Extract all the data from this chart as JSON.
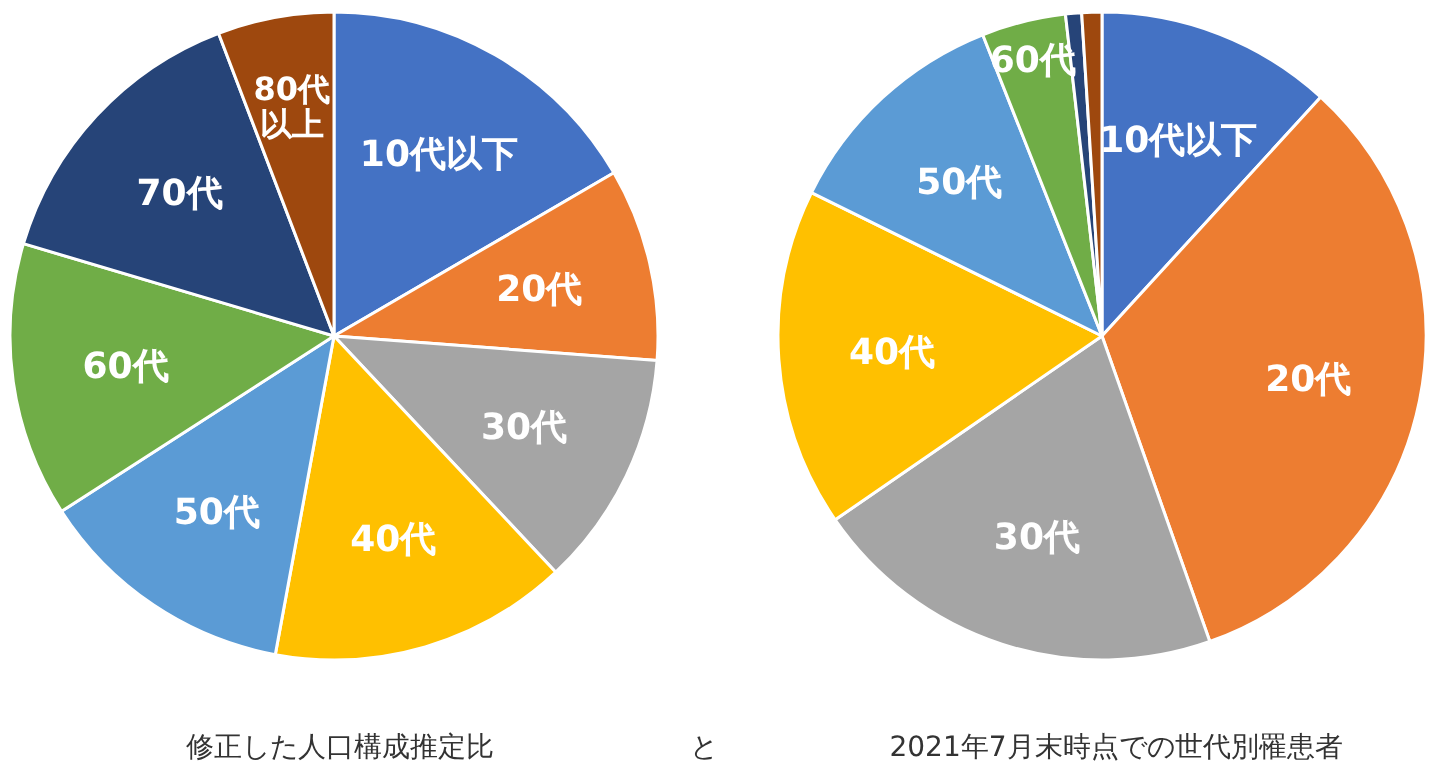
{
  "chart_data": [
    {
      "type": "pie",
      "title": "修正した人口構成推定比",
      "annotations": [
        "と"
      ],
      "categories": [
        "10代以下",
        "20代",
        "30代",
        "40代",
        "50代",
        "60代",
        "70代",
        "80代以上"
      ],
      "values": [
        16.6,
        9.6,
        11.8,
        14.9,
        13.0,
        13.7,
        14.6,
        5.8
      ],
      "colors": [
        "#4472c4",
        "#ed7d31",
        "#a5a5a5",
        "#ffc000",
        "#5b9bd5",
        "#70ad47",
        "#264478",
        "#9e480e"
      ]
    },
    {
      "type": "pie",
      "title": "2021年7月末時点での世代別罹患者",
      "categories": [
        "10代以下",
        "20代",
        "30代",
        "40代",
        "50代",
        "60代",
        null,
        null
      ],
      "values": [
        11.8,
        32.8,
        20.8,
        16.9,
        11.7,
        4.2,
        0.8,
        1.0
      ],
      "colors": [
        "#4472c4",
        "#ed7d31",
        "#a5a5a5",
        "#ffc000",
        "#5b9bd5",
        "#70ad47",
        "#264478",
        "#9e480e"
      ]
    }
  ]
}
